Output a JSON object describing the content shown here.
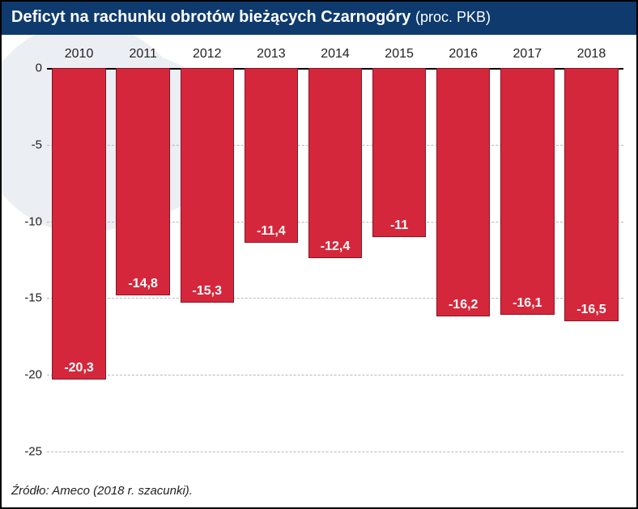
{
  "title_main": "Deficyt na rachunku obrotów bieżących Czarnogóry",
  "title_sub": "(proc. PKB)",
  "source": "Źródło: Ameco (2018 r. szacunki).",
  "chart": {
    "type": "bar",
    "categories": [
      "2010",
      "2011",
      "2012",
      "2013",
      "2014",
      "2015",
      "2016",
      "2017",
      "2018"
    ],
    "values": [
      -20.3,
      -14.8,
      -15.3,
      -11.4,
      -12.4,
      -11,
      -16.2,
      -16.1,
      -16.5
    ],
    "labels": [
      "-20,3",
      "-14,8",
      "-15,3",
      "-11,4",
      "-12,4",
      "-11",
      "-16,2",
      "-16,1",
      "-16,5"
    ],
    "ylim": [
      -25,
      0
    ],
    "yticks": [
      0,
      -5,
      -10,
      -15,
      -20,
      -25
    ],
    "ytick_labels": [
      "0",
      "-5",
      "-10",
      "-15",
      "-20",
      "-25"
    ],
    "bar_color": "#d4273b",
    "bar_border": "#8a1424",
    "grid_color": "#b8b8b8",
    "background_color": "#ffffff",
    "title_bg": "#0e3a6e",
    "title_color": "#ffffff",
    "label_fontsize": 16,
    "title_fontsize": 20,
    "tick_fontsize": 15,
    "bar_width": 0.84
  }
}
